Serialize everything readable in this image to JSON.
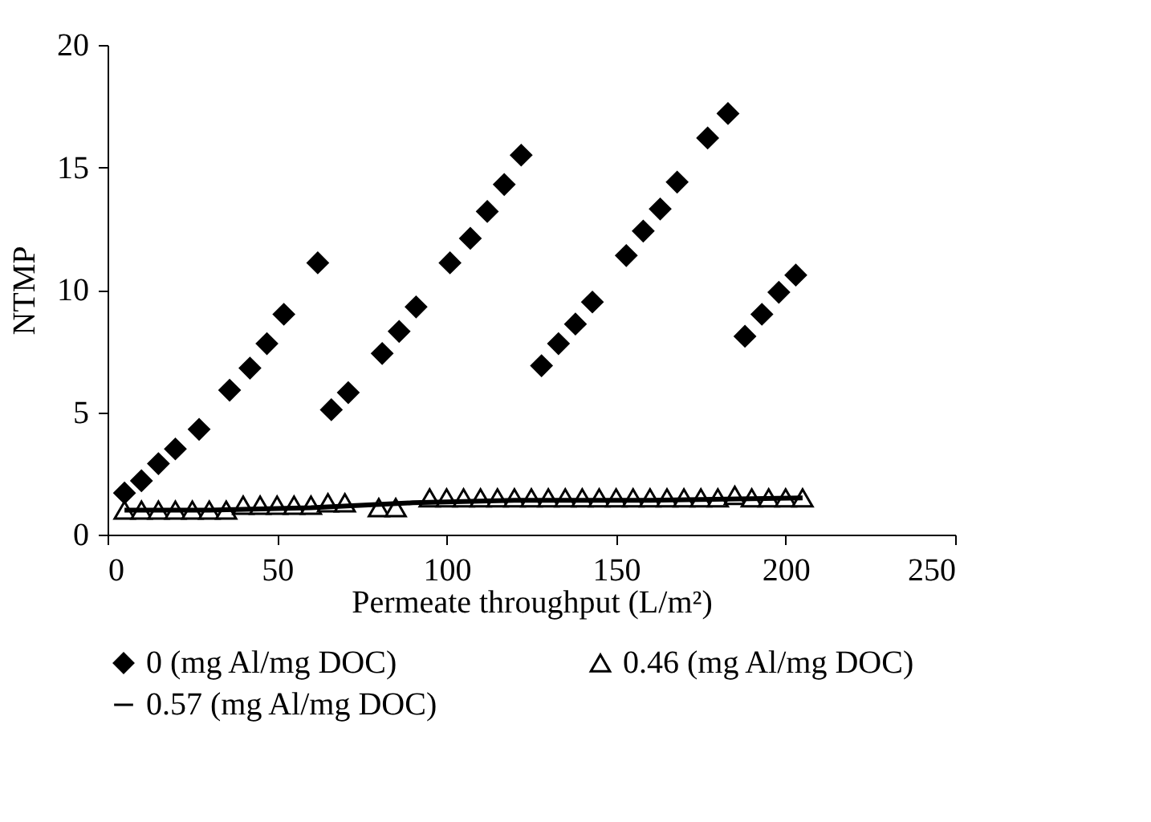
{
  "chart_data": {
    "type": "scatter",
    "xlabel": "Permeate throughput (L/m²)",
    "ylabel": "NTMP",
    "xlim": [
      0,
      250
    ],
    "ylim": [
      0,
      20
    ],
    "xticks": [
      0,
      50,
      100,
      150,
      200,
      250
    ],
    "yticks": [
      0,
      5,
      10,
      15,
      20
    ],
    "grid": false,
    "legend": "bottom",
    "series": [
      {
        "name": "0 (mg Al/mg DOC)",
        "marker": "diamond",
        "color": "#000000",
        "x": [
          5,
          10,
          15,
          20,
          27,
          36,
          42,
          47,
          52,
          62,
          66,
          71,
          81,
          86,
          91,
          101,
          107,
          112,
          117,
          122,
          128,
          133,
          138,
          143,
          153,
          158,
          163,
          168,
          177,
          183,
          188,
          193,
          198,
          203
        ],
        "values": [
          1.7,
          2.2,
          2.9,
          3.5,
          4.3,
          5.9,
          6.8,
          7.8,
          9.0,
          11.1,
          5.1,
          5.8,
          7.4,
          8.3,
          9.3,
          11.1,
          12.1,
          13.2,
          14.3,
          15.5,
          6.9,
          7.8,
          8.6,
          9.5,
          11.4,
          12.4,
          13.3,
          14.4,
          16.2,
          17.2,
          8.1,
          9.0,
          9.9,
          10.6
        ]
      },
      {
        "name": "0.46 (mg Al/mg DOC)",
        "marker": "triangle",
        "color": "#000000",
        "x": [
          5,
          10,
          15,
          20,
          25,
          30,
          35,
          40,
          45,
          50,
          55,
          60,
          65,
          70,
          80,
          85,
          95,
          100,
          105,
          110,
          115,
          120,
          125,
          130,
          135,
          140,
          145,
          150,
          155,
          160,
          165,
          170,
          175,
          180,
          185,
          190,
          195,
          200,
          205
        ],
        "values": [
          1.0,
          1.0,
          1.0,
          1.0,
          1.0,
          1.0,
          1.0,
          1.2,
          1.2,
          1.2,
          1.2,
          1.2,
          1.3,
          1.3,
          1.1,
          1.1,
          1.5,
          1.5,
          1.5,
          1.5,
          1.5,
          1.5,
          1.5,
          1.5,
          1.5,
          1.5,
          1.5,
          1.5,
          1.5,
          1.5,
          1.5,
          1.5,
          1.5,
          1.5,
          1.6,
          1.5,
          1.5,
          1.5,
          1.5
        ]
      },
      {
        "name": "0.57 (mg Al/mg DOC)",
        "type": "line",
        "marker": "none",
        "color": "#000000",
        "x": [
          5,
          30,
          60,
          90,
          120,
          160,
          205
        ],
        "values": [
          1.0,
          1.0,
          1.1,
          1.3,
          1.4,
          1.4,
          1.5
        ]
      }
    ]
  }
}
